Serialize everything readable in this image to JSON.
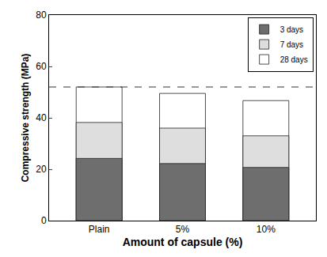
{
  "chart_data": {
    "type": "bar",
    "x_label": "Amount of capsule (%)",
    "y_label": "Compressive strength (MPa)",
    "categories": [
      "Plain",
      "5%",
      "10%"
    ],
    "series": [
      {
        "name": "3 days",
        "color": "#6e6e6e",
        "values": [
          24.2,
          22.2,
          20.7
        ]
      },
      {
        "name": "7 days",
        "color": "#dedede",
        "values": [
          38.2,
          36.0,
          33.0
        ]
      },
      {
        "name": "28 days",
        "color": "#ffffff",
        "values": [
          52.0,
          49.5,
          46.7
        ]
      }
    ],
    "reference_line": 52,
    "ylim": [
      0,
      80
    ],
    "yticks": [
      0,
      20,
      40,
      60,
      80
    ],
    "legend": "upper right",
    "grid": false
  }
}
